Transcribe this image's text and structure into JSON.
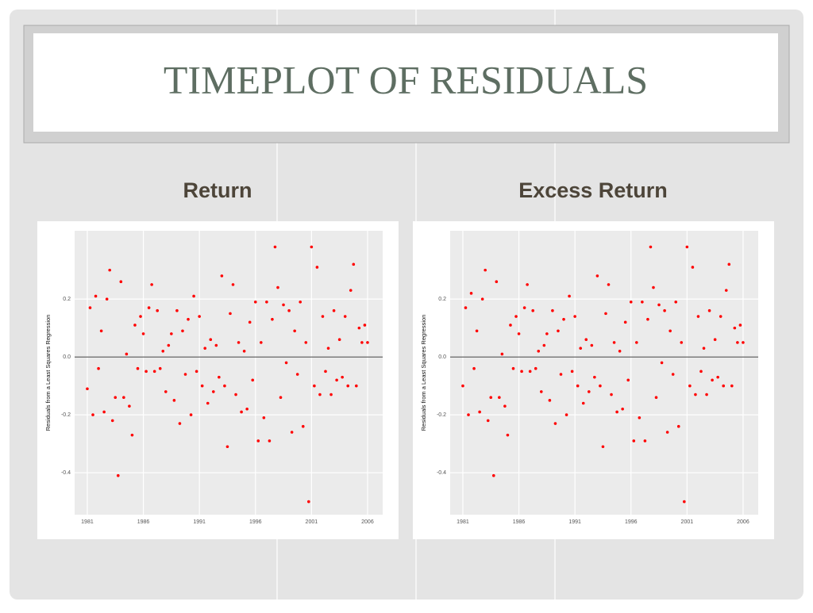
{
  "header": {
    "title": "TIMEPLOT OF RESIDUALS"
  },
  "chart_data": [
    {
      "type": "scatter",
      "subtitle": "Return",
      "y_label": "Residuals from a Least Squares Regression",
      "color": "#ff0000",
      "hline": 0,
      "grid": true,
      "xlim": [
        1979.87,
        2007.35
      ],
      "xticks": [
        1981,
        1986,
        1991,
        1996,
        2001,
        2006
      ],
      "ylim": [
        -0.545,
        0.436
      ],
      "yticks": [
        -0.4,
        -0.2,
        {
          "value": 0,
          "label": "0.0"
        },
        0.2
      ],
      "x": [
        1981,
        1981.25,
        1981.5,
        1981.75,
        1982,
        1982.25,
        1982.5,
        1982.75,
        1983,
        1983.25,
        1983.5,
        1983.75,
        1984,
        1984.25,
        1984.5,
        1984.75,
        1985,
        1985.25,
        1985.5,
        1985.75,
        1986,
        1986.25,
        1986.5,
        1986.75,
        1987,
        1987.25,
        1987.5,
        1987.75,
        1988,
        1988.25,
        1988.5,
        1988.75,
        1989,
        1989.25,
        1989.5,
        1989.75,
        1990,
        1990.25,
        1990.5,
        1990.75,
        1991,
        1991.25,
        1991.5,
        1991.75,
        1992,
        1992.25,
        1992.5,
        1992.75,
        1993,
        1993.25,
        1993.5,
        1993.75,
        1994,
        1994.25,
        1994.5,
        1994.75,
        1995,
        1995.25,
        1995.5,
        1995.75,
        1996,
        1996.25,
        1996.5,
        1996.75,
        1997,
        1997.25,
        1997.5,
        1997.75,
        1998,
        1998.25,
        1998.5,
        1998.75,
        1999,
        1999.25,
        1999.5,
        1999.75,
        2000,
        2000.25,
        2000.5,
        2000.75,
        2001,
        2001.25,
        2001.5,
        2001.75,
        2002,
        2002.25,
        2002.5,
        2002.75,
        2003,
        2003.25,
        2003.5,
        2003.75,
        2004,
        2004.25,
        2004.5,
        2004.75,
        2005,
        2005.25,
        2005.5,
        2005.75,
        2006
      ],
      "values": [
        -0.11,
        0.17,
        -0.2,
        0.21,
        -0.04,
        0.09,
        -0.19,
        0.2,
        0.3,
        -0.22,
        -0.14,
        -0.41,
        0.26,
        -0.14,
        0.01,
        -0.17,
        -0.27,
        0.11,
        -0.04,
        0.14,
        0.08,
        -0.05,
        0.17,
        0.25,
        -0.05,
        0.16,
        -0.04,
        0.02,
        -0.12,
        0.04,
        0.08,
        -0.15,
        0.16,
        -0.23,
        0.09,
        -0.06,
        0.13,
        -0.2,
        0.21,
        -0.05,
        0.14,
        -0.1,
        0.03,
        -0.16,
        0.06,
        -0.12,
        0.04,
        -0.07,
        0.28,
        -0.1,
        -0.31,
        0.15,
        0.25,
        -0.13,
        0.05,
        -0.19,
        0.02,
        -0.18,
        0.12,
        -0.08,
        0.19,
        -0.29,
        0.05,
        -0.21,
        0.19,
        -0.29,
        0.13,
        0.38,
        0.24,
        -0.14,
        0.18,
        -0.02,
        0.16,
        -0.26,
        0.09,
        -0.06,
        0.19,
        -0.24,
        0.05,
        -0.5,
        0.38,
        -0.1,
        0.31,
        -0.13,
        0.14,
        -0.05,
        0.03,
        -0.13,
        0.16,
        -0.08,
        0.06,
        -0.07,
        0.14,
        -0.1,
        0.23,
        0.32,
        -0.1,
        0.1,
        0.05,
        0.11,
        0.05
      ]
    },
    {
      "type": "scatter",
      "subtitle": "Excess Return",
      "y_label": "Residuals from a Least Squares Regression",
      "color": "#ff0000",
      "hline": 0,
      "grid": true,
      "xlim": [
        1979.87,
        2007.35
      ],
      "xticks": [
        1981,
        1986,
        1991,
        1996,
        2001,
        2006
      ],
      "ylim": [
        -0.545,
        0.436
      ],
      "yticks": [
        -0.4,
        -0.2,
        {
          "value": 0,
          "label": "0.0"
        },
        0.2
      ],
      "x": [
        1981,
        1981.25,
        1981.5,
        1981.75,
        1982,
        1982.25,
        1982.5,
        1982.75,
        1983,
        1983.25,
        1983.5,
        1983.75,
        1984,
        1984.25,
        1984.5,
        1984.75,
        1985,
        1985.25,
        1985.5,
        1985.75,
        1986,
        1986.25,
        1986.5,
        1986.75,
        1987,
        1987.25,
        1987.5,
        1987.75,
        1988,
        1988.25,
        1988.5,
        1988.75,
        1989,
        1989.25,
        1989.5,
        1989.75,
        1990,
        1990.25,
        1990.5,
        1990.75,
        1991,
        1991.25,
        1991.5,
        1991.75,
        1992,
        1992.25,
        1992.5,
        1992.75,
        1993,
        1993.25,
        1993.5,
        1993.75,
        1994,
        1994.25,
        1994.5,
        1994.75,
        1995,
        1995.25,
        1995.5,
        1995.75,
        1996,
        1996.25,
        1996.5,
        1996.75,
        1997,
        1997.25,
        1997.5,
        1997.75,
        1998,
        1998.25,
        1998.5,
        1998.75,
        1999,
        1999.25,
        1999.5,
        1999.75,
        2000,
        2000.25,
        2000.5,
        2000.75,
        2001,
        2001.25,
        2001.5,
        2001.75,
        2002,
        2002.25,
        2002.5,
        2002.75,
        2003,
        2003.25,
        2003.5,
        2003.75,
        2004,
        2004.25,
        2004.5,
        2004.75,
        2005,
        2005.25,
        2005.5,
        2005.75,
        2006
      ],
      "values": [
        -0.1,
        0.17,
        -0.2,
        0.22,
        -0.04,
        0.09,
        -0.19,
        0.2,
        0.3,
        -0.22,
        -0.14,
        -0.41,
        0.26,
        -0.14,
        0.01,
        -0.17,
        -0.27,
        0.11,
        -0.04,
        0.14,
        0.08,
        -0.05,
        0.17,
        0.25,
        -0.05,
        0.16,
        -0.04,
        0.02,
        -0.12,
        0.04,
        0.08,
        -0.15,
        0.16,
        -0.23,
        0.09,
        -0.06,
        0.13,
        -0.2,
        0.21,
        -0.05,
        0.14,
        -0.1,
        0.03,
        -0.16,
        0.06,
        -0.12,
        0.04,
        -0.07,
        0.28,
        -0.1,
        -0.31,
        0.15,
        0.25,
        -0.13,
        0.05,
        -0.19,
        0.02,
        -0.18,
        0.12,
        -0.08,
        0.19,
        -0.29,
        0.05,
        -0.21,
        0.19,
        -0.29,
        0.13,
        0.38,
        0.24,
        -0.14,
        0.18,
        -0.02,
        0.16,
        -0.26,
        0.09,
        -0.06,
        0.19,
        -0.24,
        0.05,
        -0.5,
        0.38,
        -0.1,
        0.31,
        -0.13,
        0.14,
        -0.05,
        0.03,
        -0.13,
        0.16,
        -0.08,
        0.06,
        -0.07,
        0.14,
        -0.1,
        0.23,
        0.32,
        -0.1,
        0.1,
        0.05,
        0.11,
        0.05
      ]
    }
  ]
}
